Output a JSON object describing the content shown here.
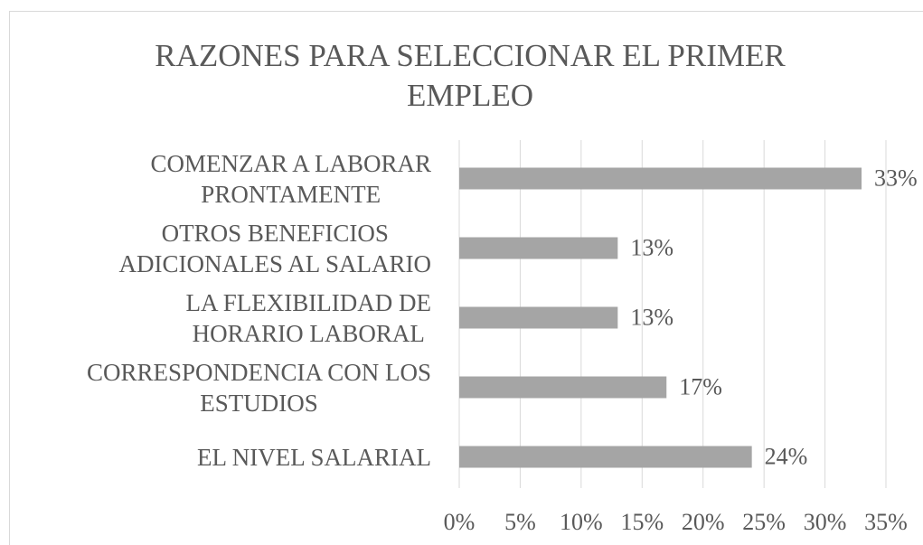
{
  "chart_data": {
    "type": "bar",
    "orientation": "horizontal",
    "title": "RAZONES PARA SELECCIONAR EL PRIMER EMPLEO",
    "categories": [
      "COMENZAR A LABORAR\nPRONTAMENTE",
      "OTROS BENEFICIOS\nADICIONALES AL SALARIO",
      "LA FLEXIBILIDAD DE\nHORARIO LABORAL",
      "CORRESPONDENCIA CON LOS\nESTUDIOS",
      "EL NIVEL SALARIAL"
    ],
    "values": [
      33,
      13,
      13,
      17,
      24
    ],
    "value_labels": [
      "33%",
      "13%",
      "13%",
      "17%",
      "24%"
    ],
    "color": "#a5a5a5",
    "xlim": [
      0,
      35
    ],
    "xticks": [
      {
        "value": 0,
        "label": "0%"
      },
      {
        "value": 5,
        "label": "5%"
      },
      {
        "value": 10,
        "label": "10%"
      },
      {
        "value": 15,
        "label": "15%"
      },
      {
        "value": 20,
        "label": "20%"
      },
      {
        "value": 25,
        "label": "25%"
      },
      {
        "value": 30,
        "label": "30%"
      },
      {
        "value": 35,
        "label": "35%"
      }
    ],
    "grid": true
  }
}
